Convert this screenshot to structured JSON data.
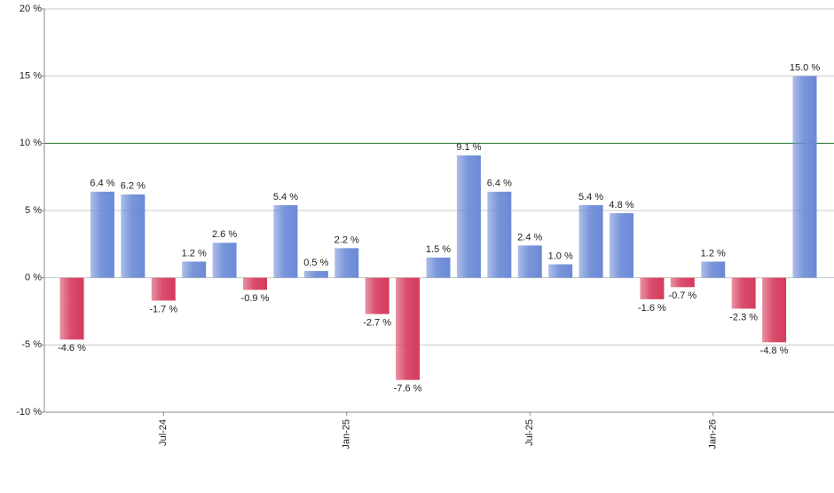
{
  "chart_data": {
    "type": "bar",
    "categories": [
      null,
      null,
      null,
      "Jul-24",
      null,
      null,
      null,
      null,
      null,
      "Jan-25",
      null,
      null,
      null,
      null,
      null,
      "Jul-25",
      null,
      null,
      null,
      null,
      null,
      "Jan-26",
      null,
      null,
      null
    ],
    "values": [
      -4.6,
      6.4,
      6.2,
      -1.7,
      1.2,
      2.6,
      -0.9,
      5.4,
      0.5,
      2.2,
      -2.7,
      -7.6,
      1.5,
      9.1,
      6.4,
      2.4,
      1.0,
      5.4,
      4.8,
      -1.6,
      -0.7,
      1.2,
      -2.3,
      -4.8,
      15.0
    ],
    "value_labels": [
      "-4.6 %",
      "6.4 %",
      "6.2 %",
      "-1.7 %",
      "1.2 %",
      "2.6 %",
      "-0.9 %",
      "5.4 %",
      "0.5 %",
      "2.2 %",
      "-2.7 %",
      "-7.6 %",
      "1.5 %",
      "9.1 %",
      "6.4 %",
      "2.4 %",
      "1.0 %",
      "5.4 %",
      "4.8 %",
      "-1.6 %",
      "-0.7 %",
      "1.2 %",
      "-2.3 %",
      "-4.8 %",
      "15.0 %"
    ],
    "positive_color": "#6a8ad6",
    "negative_color": "#d63a5c",
    "ylim": [
      -10,
      20
    ],
    "yticks": [
      {
        "value": -10,
        "label": "-10 %"
      },
      {
        "value": -5,
        "label": "-5 %"
      },
      {
        "value": 0,
        "label": "0 %"
      },
      {
        "value": 5,
        "label": "5 %"
      },
      {
        "value": 10,
        "label": "10 %"
      },
      {
        "value": 15,
        "label": "15 %"
      },
      {
        "value": 20,
        "label": "20 %"
      }
    ],
    "grid": true,
    "reference_line": {
      "value": 10,
      "color": "#2e7d32"
    }
  }
}
